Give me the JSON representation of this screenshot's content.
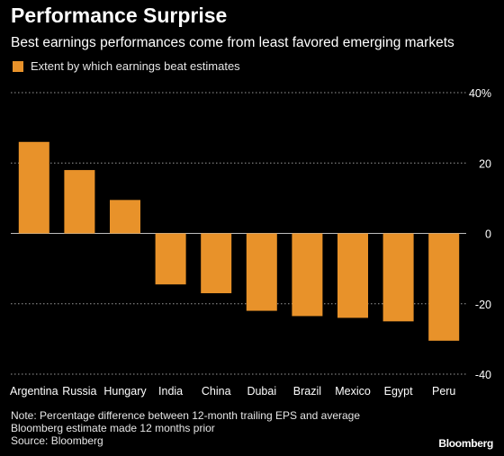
{
  "header": {
    "title": "Performance Surprise",
    "subtitle": "Best earnings performances come from least favored emerging markets"
  },
  "legend": {
    "label": "Extent by which earnings beat estimates"
  },
  "colors": {
    "bar": "#e8922a",
    "grid": "#9a9a9a",
    "zero_line": "#bdbdbd",
    "background": "#000000"
  },
  "chart_data": {
    "type": "bar",
    "categories": [
      "Argentina",
      "Russia",
      "Hungary",
      "India",
      "China",
      "Dubai",
      "Brazil",
      "Mexico",
      "Egypt",
      "Peru"
    ],
    "values": [
      26,
      18,
      9.5,
      -14.5,
      -17,
      -22,
      -23.5,
      -24,
      -25,
      -30.5
    ],
    "series": [
      {
        "name": "Extent by which earnings beat estimates",
        "values": [
          26,
          18,
          9.5,
          -14.5,
          -17,
          -22,
          -23.5,
          -24,
          -25,
          -30.5
        ]
      }
    ],
    "ylim": [
      -40,
      40
    ],
    "yticks": [
      40,
      20,
      0,
      -20,
      -40
    ],
    "ytick_labels": [
      "40%",
      "20",
      "0",
      "-20",
      "-40"
    ],
    "xlabel": "",
    "ylabel": "",
    "grid": true,
    "legend_position": "top-left"
  },
  "footer": {
    "note_line1": "Note: Percentage difference between 12-month trailing EPS and average",
    "note_line2": "Bloomberg estimate made 12 months prior",
    "source": "Source: Bloomberg",
    "brand": "Bloomberg"
  }
}
